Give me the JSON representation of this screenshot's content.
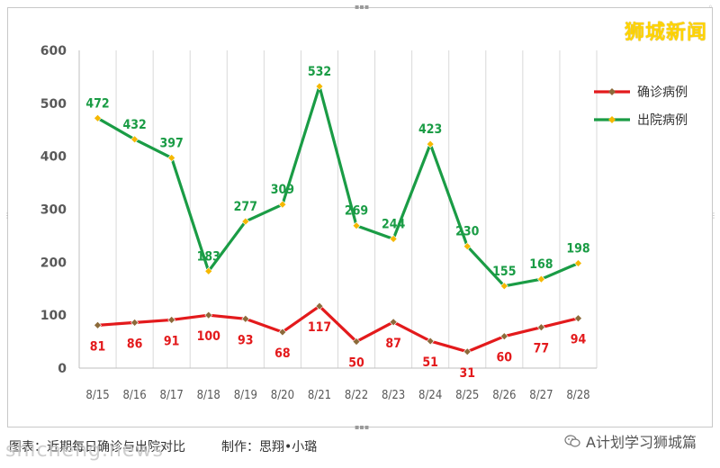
{
  "brand": "狮城新闻",
  "caption": "图表：近期每日确诊与出院对比",
  "credit": "制作：思翔•小璐",
  "wechat_account": "A计划学习狮城篇",
  "watermark": "shicheng.news",
  "icons": {
    "wechat": "wechat-icon"
  },
  "colors": {
    "confirmed": "#e31a1c",
    "discharged": "#1a9c45",
    "marker": "#f5b800",
    "grid": "#d9d9d9",
    "axis_text": "#595959"
  },
  "chart_data": {
    "type": "line",
    "categories": [
      "8/15",
      "8/16",
      "8/17",
      "8/18",
      "8/19",
      "8/20",
      "8/21",
      "8/22",
      "8/23",
      "8/24",
      "8/25",
      "8/26",
      "8/27",
      "8/28"
    ],
    "series": [
      {
        "name": "确诊病例",
        "values": [
          81,
          86,
          91,
          100,
          93,
          68,
          117,
          50,
          87,
          51,
          31,
          60,
          77,
          94
        ]
      },
      {
        "name": "出院病例",
        "values": [
          472,
          432,
          397,
          183,
          277,
          309,
          532,
          269,
          244,
          423,
          230,
          155,
          168,
          198
        ]
      }
    ],
    "ylim": [
      0,
      600
    ],
    "yticks": [
      0,
      100,
      200,
      300,
      400,
      500,
      600
    ],
    "grid": "vertical",
    "legend": "right"
  }
}
